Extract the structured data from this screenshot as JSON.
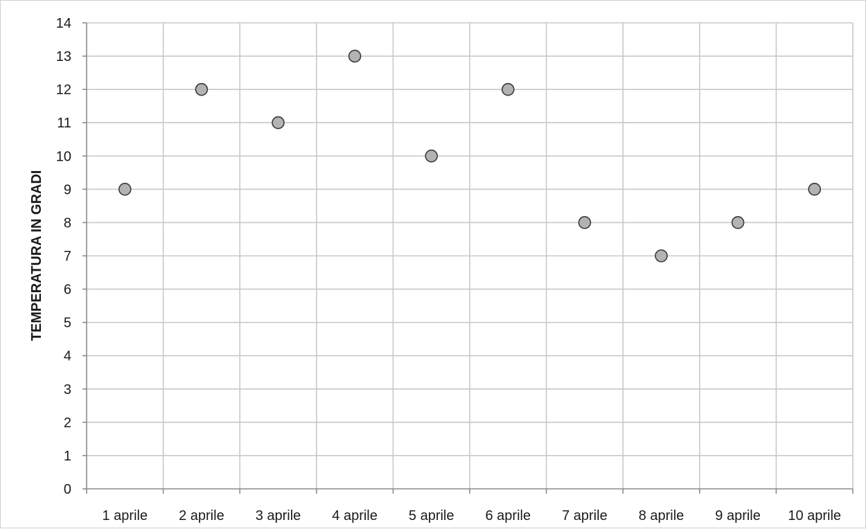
{
  "chart_data": {
    "type": "scatter",
    "categories": [
      "1 aprile",
      "2 aprile",
      "3 aprile",
      "4 aprile",
      "5 aprile",
      "6 aprile",
      "7 aprile",
      "8 aprile",
      "9 aprile",
      "10 aprile"
    ],
    "values": [
      9,
      12,
      11,
      13,
      10,
      12,
      8,
      7,
      8,
      9
    ],
    "ylabel": "TEMPERATURA IN GRADI",
    "xlabel": "",
    "ylim": [
      0,
      14
    ],
    "yticks": [
      0,
      1,
      2,
      3,
      4,
      5,
      6,
      7,
      8,
      9,
      10,
      11,
      12,
      13,
      14
    ],
    "grid": true,
    "marker_color": "#b3b3b3",
    "marker_edge_color": "#3a3a3a"
  }
}
